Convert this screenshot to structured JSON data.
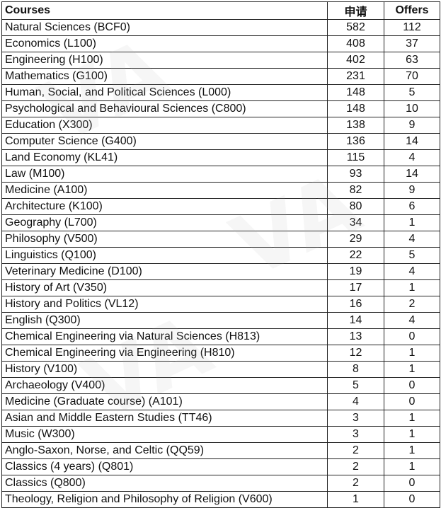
{
  "table": {
    "headers": [
      "Courses",
      "申请",
      "Offers"
    ],
    "rows": [
      [
        "Natural Sciences (BCF0)",
        "582",
        "112"
      ],
      [
        "Economics (L100)",
        "408",
        "37"
      ],
      [
        "Engineering (H100)",
        "402",
        "63"
      ],
      [
        "Mathematics (G100)",
        "231",
        "70"
      ],
      [
        "Human, Social, and Political Sciences (L000)",
        "148",
        "5"
      ],
      [
        "Psychological and Behavioural Sciences (C800)",
        "148",
        "10"
      ],
      [
        "Education (X300)",
        "138",
        "9"
      ],
      [
        "Computer Science (G400)",
        "136",
        "14"
      ],
      [
        "Land Economy (KL41)",
        "115",
        "4"
      ],
      [
        "Law (M100)",
        "93",
        "14"
      ],
      [
        "Medicine (A100)",
        "82",
        "9"
      ],
      [
        "Architecture (K100)",
        "80",
        "6"
      ],
      [
        "Geography (L700)",
        "34",
        "1"
      ],
      [
        "Philosophy (V500)",
        "29",
        "4"
      ],
      [
        "Linguistics (Q100)",
        "22",
        "5"
      ],
      [
        "Veterinary Medicine (D100)",
        "19",
        "4"
      ],
      [
        "History of Art (V350)",
        "17",
        "1"
      ],
      [
        "History and Politics (VL12)",
        "16",
        "2"
      ],
      [
        "English (Q300)",
        "14",
        "4"
      ],
      [
        "Chemical Engineering via Natural Sciences (H813)",
        "13",
        "0"
      ],
      [
        "Chemical Engineering via Engineering (H810)",
        "12",
        "1"
      ],
      [
        "History (V100)",
        "8",
        "1"
      ],
      [
        "Archaeology (V400)",
        "5",
        "0"
      ],
      [
        "Medicine (Graduate course) (A101)",
        "4",
        "0"
      ],
      [
        "Asian and Middle Eastern Studies (TT46)",
        "3",
        "1"
      ],
      [
        "Music (W300)",
        "3",
        "1"
      ],
      [
        "Anglo-Saxon, Norse, and Celtic (QQ59)",
        "2",
        "1"
      ],
      [
        "Classics (4 years) (Q801)",
        "2",
        "1"
      ],
      [
        "Classics (Q800)",
        "2",
        "0"
      ],
      [
        "Theology, Religion and Philosophy of Religion (V600)",
        "1",
        "0"
      ]
    ]
  },
  "watermark": "VA"
}
